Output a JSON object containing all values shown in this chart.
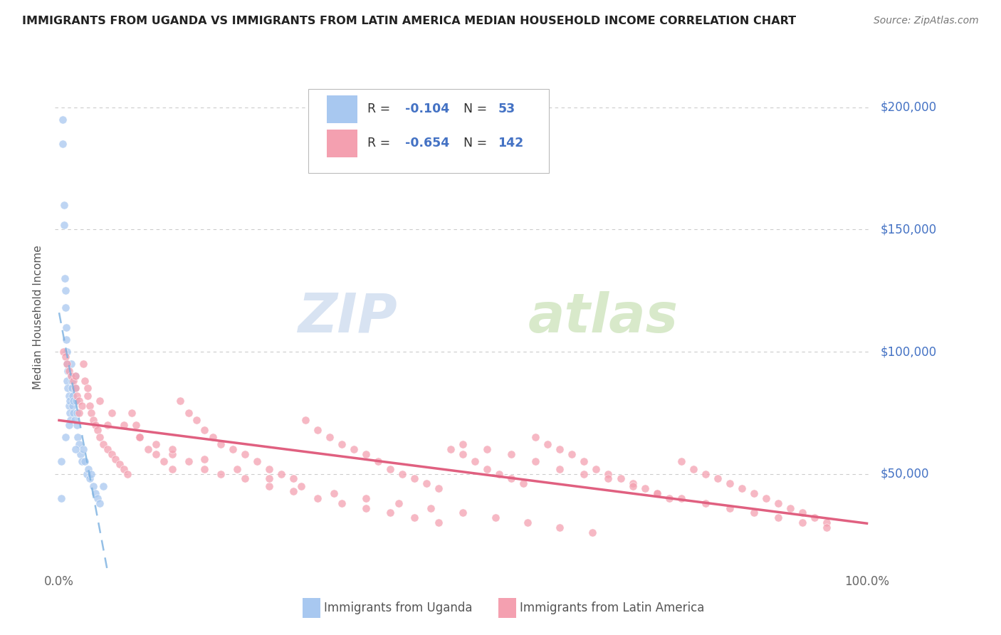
{
  "title": "IMMIGRANTS FROM UGANDA VS IMMIGRANTS FROM LATIN AMERICA MEDIAN HOUSEHOLD INCOME CORRELATION CHART",
  "source_text": "Source: ZipAtlas.com",
  "ylabel": "Median Household Income",
  "y_tick_labels": [
    "$50,000",
    "$100,000",
    "$150,000",
    "$200,000"
  ],
  "y_tick_values": [
    50000,
    100000,
    150000,
    200000
  ],
  "ylim": [
    10000,
    218000
  ],
  "xlim": [
    -0.005,
    1.005
  ],
  "color_uganda": "#a8c8f0",
  "color_latin": "#f4a0b0",
  "color_trend_uganda": "#7ab0e0",
  "color_trend_latin": "#e06080",
  "color_blue_text": "#4472c4",
  "watermark_zip": "ZIP",
  "watermark_atlas": "atlas",
  "watermark_color_zip": "#b8c8e8",
  "watermark_color_atlas": "#c8d8b0",
  "uganda_x": [
    0.003,
    0.004,
    0.004,
    0.006,
    0.006,
    0.007,
    0.008,
    0.008,
    0.009,
    0.009,
    0.01,
    0.01,
    0.01,
    0.011,
    0.011,
    0.012,
    0.012,
    0.013,
    0.013,
    0.014,
    0.015,
    0.015,
    0.016,
    0.016,
    0.017,
    0.017,
    0.018,
    0.018,
    0.019,
    0.02,
    0.02,
    0.021,
    0.022,
    0.022,
    0.023,
    0.025,
    0.026,
    0.028,
    0.03,
    0.032,
    0.034,
    0.036,
    0.038,
    0.04,
    0.042,
    0.045,
    0.048,
    0.05,
    0.003,
    0.008,
    0.012,
    0.02,
    0.055
  ],
  "uganda_y": [
    40000,
    185000,
    195000,
    152000,
    160000,
    130000,
    125000,
    118000,
    110000,
    105000,
    95000,
    88000,
    100000,
    85000,
    92000,
    82000,
    78000,
    75000,
    80000,
    72000,
    90000,
    95000,
    85000,
    88000,
    82000,
    78000,
    80000,
    75000,
    72000,
    85000,
    90000,
    80000,
    75000,
    70000,
    65000,
    62000,
    58000,
    55000,
    60000,
    55000,
    50000,
    52000,
    48000,
    50000,
    45000,
    42000,
    40000,
    38000,
    55000,
    65000,
    70000,
    60000,
    45000
  ],
  "latin_x": [
    0.005,
    0.008,
    0.01,
    0.012,
    0.015,
    0.018,
    0.02,
    0.022,
    0.025,
    0.028,
    0.03,
    0.032,
    0.035,
    0.038,
    0.04,
    0.042,
    0.045,
    0.048,
    0.05,
    0.055,
    0.06,
    0.065,
    0.07,
    0.075,
    0.08,
    0.085,
    0.09,
    0.095,
    0.1,
    0.11,
    0.12,
    0.13,
    0.14,
    0.15,
    0.16,
    0.17,
    0.18,
    0.19,
    0.2,
    0.215,
    0.23,
    0.245,
    0.26,
    0.275,
    0.29,
    0.305,
    0.32,
    0.335,
    0.35,
    0.365,
    0.38,
    0.395,
    0.41,
    0.425,
    0.44,
    0.455,
    0.47,
    0.485,
    0.5,
    0.515,
    0.53,
    0.545,
    0.56,
    0.575,
    0.59,
    0.605,
    0.62,
    0.635,
    0.65,
    0.665,
    0.68,
    0.695,
    0.71,
    0.725,
    0.74,
    0.755,
    0.77,
    0.785,
    0.8,
    0.815,
    0.83,
    0.845,
    0.86,
    0.875,
    0.89,
    0.905,
    0.92,
    0.935,
    0.95,
    0.02,
    0.035,
    0.05,
    0.065,
    0.08,
    0.1,
    0.12,
    0.14,
    0.16,
    0.18,
    0.2,
    0.23,
    0.26,
    0.29,
    0.32,
    0.35,
    0.38,
    0.41,
    0.44,
    0.47,
    0.5,
    0.53,
    0.56,
    0.59,
    0.62,
    0.65,
    0.68,
    0.71,
    0.74,
    0.77,
    0.8,
    0.83,
    0.86,
    0.89,
    0.92,
    0.95,
    0.025,
    0.06,
    0.1,
    0.14,
    0.18,
    0.22,
    0.26,
    0.3,
    0.34,
    0.38,
    0.42,
    0.46,
    0.5,
    0.54,
    0.58,
    0.62,
    0.66
  ],
  "latin_y": [
    100000,
    98000,
    95000,
    92000,
    90000,
    88000,
    85000,
    82000,
    80000,
    78000,
    95000,
    88000,
    82000,
    78000,
    75000,
    72000,
    70000,
    68000,
    65000,
    62000,
    60000,
    58000,
    56000,
    54000,
    52000,
    50000,
    75000,
    70000,
    65000,
    60000,
    58000,
    55000,
    52000,
    80000,
    75000,
    72000,
    68000,
    65000,
    62000,
    60000,
    58000,
    55000,
    52000,
    50000,
    48000,
    72000,
    68000,
    65000,
    62000,
    60000,
    58000,
    55000,
    52000,
    50000,
    48000,
    46000,
    44000,
    60000,
    58000,
    55000,
    52000,
    50000,
    48000,
    46000,
    65000,
    62000,
    60000,
    58000,
    55000,
    52000,
    50000,
    48000,
    46000,
    44000,
    42000,
    40000,
    55000,
    52000,
    50000,
    48000,
    46000,
    44000,
    42000,
    40000,
    38000,
    36000,
    34000,
    32000,
    30000,
    90000,
    85000,
    80000,
    75000,
    70000,
    65000,
    62000,
    58000,
    55000,
    52000,
    50000,
    48000,
    45000,
    43000,
    40000,
    38000,
    36000,
    34000,
    32000,
    30000,
    62000,
    60000,
    58000,
    55000,
    52000,
    50000,
    48000,
    45000,
    42000,
    40000,
    38000,
    36000,
    34000,
    32000,
    30000,
    28000,
    75000,
    70000,
    65000,
    60000,
    56000,
    52000,
    48000,
    45000,
    42000,
    40000,
    38000,
    36000,
    34000,
    32000,
    30000,
    28000,
    26000
  ]
}
